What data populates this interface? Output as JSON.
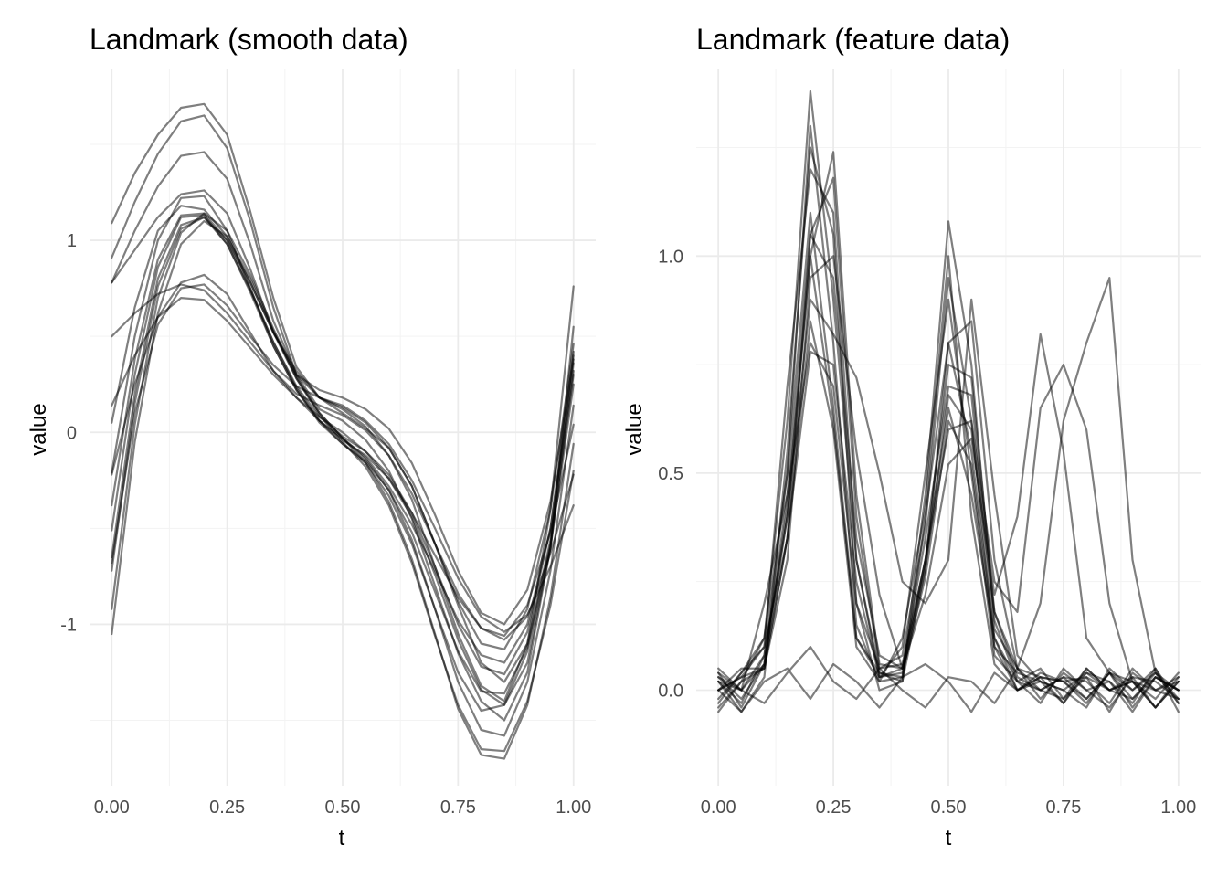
{
  "chart_data": [
    {
      "type": "line",
      "title": "Landmark (smooth data)",
      "xlabel": "t",
      "ylabel": "value",
      "xlim": [
        -0.048,
        1.048
      ],
      "ylim": [
        -1.84,
        1.89
      ],
      "xticks": [
        0.0,
        0.25,
        0.5,
        0.75,
        1.0
      ],
      "xtick_labels": [
        "0.00",
        "0.25",
        "0.50",
        "0.75",
        "1.00"
      ],
      "yticks": [
        -1,
        0,
        1
      ],
      "ytick_labels": [
        "-1",
        "0",
        "1"
      ],
      "grid": true,
      "legend": "none",
      "line_color": "#000000",
      "line_alpha": 0.5,
      "x": [
        0,
        0.05,
        0.1,
        0.15,
        0.2,
        0.25,
        0.3,
        0.35,
        0.4,
        0.45,
        0.5,
        0.55,
        0.6,
        0.65,
        0.7,
        0.75,
        0.8,
        0.85,
        0.9,
        0.95,
        1.0
      ],
      "series": [
        {
          "values": [
            1.09,
            1.35,
            1.55,
            1.69,
            1.71,
            1.55,
            1.15,
            0.7,
            0.34,
            0.18,
            0.12,
            0.03,
            -0.12,
            -0.35,
            -0.7,
            -1.05,
            -1.32,
            -1.4,
            -1.1,
            -0.4,
            0.76
          ]
        },
        {
          "values": [
            0.91,
            1.2,
            1.45,
            1.62,
            1.65,
            1.48,
            1.1,
            0.65,
            0.3,
            0.12,
            0.06,
            -0.04,
            -0.2,
            -0.45,
            -0.8,
            -1.15,
            -1.4,
            -1.5,
            -1.25,
            -0.6,
            0.55
          ]
        },
        {
          "values": [
            0.78,
            1.05,
            1.28,
            1.44,
            1.46,
            1.32,
            0.98,
            0.58,
            0.3,
            0.18,
            0.13,
            0.05,
            -0.08,
            -0.28,
            -0.58,
            -0.88,
            -1.1,
            -1.13,
            -0.92,
            -0.4,
            0.46
          ]
        },
        {
          "values": [
            0.78,
            0.95,
            1.12,
            1.24,
            1.26,
            1.14,
            0.85,
            0.52,
            0.3,
            0.22,
            0.18,
            0.12,
            0.02,
            -0.16,
            -0.43,
            -0.72,
            -0.94,
            -1.0,
            -0.82,
            -0.36,
            0.38
          ]
        },
        {
          "values": [
            0.05,
            0.65,
            1.05,
            1.18,
            1.16,
            1.02,
            0.78,
            0.52,
            0.32,
            0.18,
            0.1,
            0.02,
            -0.08,
            -0.28,
            -0.58,
            -0.9,
            -1.2,
            -1.3,
            -1.1,
            -0.56,
            0.42
          ]
        },
        {
          "values": [
            -0.21,
            0.5,
            1.0,
            1.22,
            1.23,
            1.05,
            0.75,
            0.45,
            0.22,
            0.06,
            -0.04,
            -0.12,
            -0.24,
            -0.44,
            -0.74,
            -1.08,
            -1.34,
            -1.42,
            -1.2,
            -0.6,
            0.36
          ]
        },
        {
          "values": [
            -0.38,
            0.38,
            0.9,
            1.13,
            1.14,
            1.0,
            0.75,
            0.47,
            0.24,
            0.08,
            -0.02,
            -0.1,
            -0.22,
            -0.42,
            -0.7,
            -1.0,
            -1.22,
            -1.26,
            -1.04,
            -0.5,
            0.4
          ]
        },
        {
          "values": [
            -0.51,
            0.3,
            0.86,
            1.12,
            1.13,
            0.98,
            0.73,
            0.45,
            0.22,
            0.05,
            -0.06,
            -0.15,
            -0.3,
            -0.52,
            -0.83,
            -1.14,
            -1.35,
            -1.36,
            -1.12,
            -0.58,
            0.3
          ]
        },
        {
          "values": [
            -0.65,
            0.2,
            0.8,
            1.08,
            1.12,
            0.98,
            0.74,
            0.47,
            0.23,
            0.06,
            -0.06,
            -0.16,
            -0.33,
            -0.58,
            -0.92,
            -1.25,
            -1.45,
            -1.42,
            -1.14,
            -0.6,
            0.25
          ]
        },
        {
          "values": [
            -0.72,
            0.15,
            0.76,
            1.06,
            1.12,
            1.0,
            0.78,
            0.52,
            0.28,
            0.1,
            -0.03,
            -0.14,
            -0.3,
            -0.56,
            -0.92,
            -1.3,
            -1.55,
            -1.58,
            -1.3,
            -0.72,
            0.14
          ]
        },
        {
          "values": [
            -0.92,
            0.04,
            0.7,
            1.04,
            1.14,
            1.05,
            0.82,
            0.54,
            0.29,
            0.1,
            -0.03,
            -0.16,
            -0.36,
            -0.66,
            -1.05,
            -1.44,
            -1.68,
            -1.7,
            -1.42,
            -0.86,
            -0.06
          ]
        },
        {
          "values": [
            -1.05,
            -0.05,
            0.62,
            0.98,
            1.1,
            1.02,
            0.8,
            0.53,
            0.28,
            0.09,
            -0.05,
            -0.18,
            -0.38,
            -0.68,
            -1.06,
            -1.42,
            -1.65,
            -1.66,
            -1.4,
            -0.9,
            -0.2
          ]
        },
        {
          "values": [
            -0.22,
            0.25,
            0.6,
            0.78,
            0.82,
            0.72,
            0.52,
            0.32,
            0.2,
            0.14,
            0.09,
            0.01,
            -0.12,
            -0.32,
            -0.58,
            -0.84,
            -1.02,
            -1.08,
            -0.96,
            -0.63,
            -0.22
          ]
        },
        {
          "values": [
            -0.68,
            0.1,
            0.56,
            0.75,
            0.77,
            0.66,
            0.5,
            0.35,
            0.24,
            0.18,
            0.14,
            0.06,
            -0.06,
            -0.25,
            -0.5,
            -0.76,
            -0.96,
            -1.04,
            -0.95,
            -0.7,
            -0.38
          ]
        },
        {
          "values": [
            0.5,
            0.62,
            0.72,
            0.77,
            0.74,
            0.62,
            0.47,
            0.32,
            0.18,
            0.06,
            -0.03,
            -0.13,
            -0.28,
            -0.48,
            -0.72,
            -0.98,
            -1.16,
            -1.2,
            -1.0,
            -0.5,
            0.32
          ]
        },
        {
          "values": [
            0.14,
            0.4,
            0.6,
            0.7,
            0.69,
            0.58,
            0.44,
            0.3,
            0.18,
            0.08,
            0.0,
            -0.1,
            -0.24,
            -0.42,
            -0.64,
            -0.86,
            -1.02,
            -1.06,
            -0.9,
            -0.52,
            0.04
          ]
        }
      ]
    },
    {
      "type": "line",
      "title": "Landmark (feature data)",
      "xlabel": "t",
      "ylabel": "value",
      "xlim": [
        -0.048,
        1.048
      ],
      "ylim": [
        -0.22,
        1.43
      ],
      "xticks": [
        0.0,
        0.25,
        0.5,
        0.75,
        1.0
      ],
      "xtick_labels": [
        "0.00",
        "0.25",
        "0.50",
        "0.75",
        "1.00"
      ],
      "yticks": [
        0.0,
        0.5,
        1.0
      ],
      "ytick_labels": [
        "0.0",
        "0.5",
        "1.0"
      ],
      "grid": true,
      "legend": "none",
      "line_color": "#000000",
      "line_alpha": 0.5,
      "x": [
        0,
        0.05,
        0.1,
        0.15,
        0.2,
        0.25,
        0.3,
        0.35,
        0.4,
        0.45,
        0.5,
        0.55,
        0.6,
        0.65,
        0.7,
        0.75,
        0.8,
        0.85,
        0.9,
        0.95,
        1.0
      ],
      "series": [
        {
          "values": [
            0.02,
            -0.05,
            0.03,
            0.55,
            1.25,
            1.05,
            0.2,
            0.0,
            0.02,
            0.4,
            0.8,
            0.55,
            0.12,
            0.0,
            0.03,
            -0.03,
            0.04,
            0.02,
            -0.05,
            0.03,
            0.0
          ]
        },
        {
          "values": [
            -0.03,
            0.04,
            0.1,
            0.7,
            1.2,
            1.1,
            0.3,
            0.03,
            0.1,
            0.5,
            0.9,
            0.5,
            0.08,
            0.02,
            -0.03,
            0.05,
            0.0,
            -0.04,
            0.03,
            0.02,
            -0.02
          ]
        },
        {
          "values": [
            0.04,
            0.0,
            0.08,
            0.4,
            1.0,
            1.24,
            0.45,
            0.06,
            0.05,
            0.3,
            0.75,
            0.72,
            0.18,
            0.03,
            0.0,
            -0.02,
            0.05,
            0.0,
            0.02,
            -0.04,
            0.03
          ]
        },
        {
          "values": [
            0.0,
            0.05,
            0.05,
            0.35,
            1.05,
            1.18,
            0.4,
            0.05,
            0.08,
            0.38,
            0.95,
            0.62,
            0.1,
            0.04,
            0.02,
            0.0,
            -0.04,
            0.05,
            0.0,
            0.04,
            -0.03
          ]
        },
        {
          "values": [
            -0.05,
            0.02,
            0.12,
            0.5,
            1.3,
            0.8,
            0.15,
            0.02,
            0.12,
            0.42,
            1.0,
            0.4,
            0.06,
            0.0,
            0.04,
            0.02,
            0.03,
            -0.05,
            0.04,
            0.0,
            0.02
          ]
        },
        {
          "values": [
            0.03,
            -0.02,
            0.06,
            0.45,
            1.05,
            0.95,
            0.35,
            0.08,
            0.05,
            0.35,
            0.7,
            0.68,
            0.14,
            0.05,
            -0.02,
            0.04,
            0.0,
            0.02,
            -0.03,
            0.05,
            -0.05
          ]
        },
        {
          "values": [
            0.02,
            0.0,
            0.2,
            0.45,
            0.8,
            0.7,
            0.2,
            0.05,
            0.06,
            0.3,
            0.65,
            0.45,
            0.12,
            0.02,
            0.05,
            -0.02,
            0.03,
            0.0,
            0.02,
            -0.02,
            0.04
          ]
        },
        {
          "values": [
            0.0,
            0.03,
            0.1,
            0.35,
            0.78,
            0.75,
            0.25,
            0.03,
            0.04,
            0.26,
            0.62,
            0.52,
            0.1,
            0.0,
            0.03,
            0.02,
            -0.02,
            0.04,
            -0.04,
            0.03,
            0.0
          ]
        },
        {
          "values": [
            -0.02,
            0.04,
            0.12,
            0.62,
            1.38,
            0.9,
            0.3,
            0.04,
            0.03,
            0.45,
            1.08,
            0.75,
            0.16,
            0.02,
            0.0,
            0.03,
            0.02,
            -0.03,
            0.05,
            0.0,
            -0.02
          ]
        },
        {
          "values": [
            0.04,
            -0.04,
            0.06,
            0.4,
            0.9,
            0.82,
            0.72,
            0.5,
            0.25,
            0.2,
            0.3,
            0.9,
            0.45,
            0.08,
            0.02,
            0.0,
            0.04,
            0.0,
            0.03,
            -0.04,
            0.02
          ]
        },
        {
          "values": [
            0.0,
            0.03,
            0.05,
            0.3,
            0.95,
            1.0,
            0.55,
            0.22,
            0.05,
            0.28,
            0.8,
            0.85,
            0.3,
            0.05,
            0.03,
            0.02,
            -0.03,
            0.04,
            0.0,
            0.05,
            -0.03
          ]
        },
        {
          "values": [
            0.02,
            -0.03,
            0.08,
            0.5,
            1.1,
            0.65,
            0.12,
            0.03,
            0.05,
            0.22,
            0.52,
            0.58,
            0.22,
            0.4,
            0.82,
            0.55,
            0.12,
            0.04,
            -0.02,
            0.03,
            0.0
          ]
        },
        {
          "values": [
            -0.04,
            0.02,
            0.05,
            0.35,
            0.85,
            0.6,
            0.1,
            0.02,
            0.03,
            0.3,
            0.6,
            0.62,
            0.25,
            0.18,
            0.65,
            0.75,
            0.6,
            0.2,
            0.02,
            0.0,
            0.03
          ]
        },
        {
          "values": [
            0.03,
            0.0,
            0.06,
            0.42,
            1.0,
            0.62,
            0.12,
            0.04,
            0.02,
            0.28,
            0.68,
            0.6,
            0.18,
            0.05,
            0.2,
            0.62,
            0.8,
            0.95,
            0.3,
            0.04,
            -0.02
          ]
        },
        {
          "values": [
            0.0,
            -0.05,
            0.02,
            0.05,
            -0.02,
            0.06,
            0.02,
            -0.04,
            0.03,
            0.06,
            0.02,
            -0.05,
            0.04,
            0.0,
            0.02,
            -0.03,
            0.05,
            0.0,
            -0.02,
            0.04,
            0.0
          ]
        },
        {
          "values": [
            0.05,
            0.0,
            -0.03,
            0.04,
            0.1,
            0.02,
            -0.02,
            0.05,
            0.0,
            -0.04,
            0.03,
            0.02,
            -0.03,
            0.05,
            0.0,
            0.03,
            -0.02,
            0.04,
            0.02,
            -0.04,
            0.02
          ]
        }
      ]
    }
  ]
}
